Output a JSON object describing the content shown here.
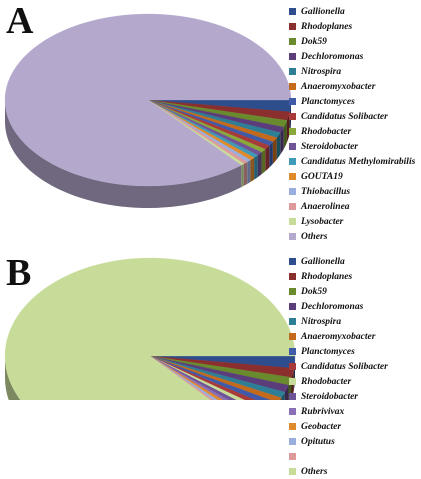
{
  "chart_data": [
    {
      "panel": "A",
      "type": "pie",
      "title": "",
      "colors": [
        "#2e4d8c",
        "#8b2e2e",
        "#6a8a2e",
        "#5a3d7a",
        "#2e7e96",
        "#c46a1d",
        "#3e5aa8",
        "#a83a3a",
        "#8aa83a",
        "#6e5496",
        "#3e9ab6",
        "#e08a2e",
        "#9aaede",
        "#de9a9a",
        "#c8dc9a",
        "#b4a8cc"
      ],
      "slices": [
        {
          "label": "Gallionella",
          "value": 2.2
        },
        {
          "label": "Rhodoplanes",
          "value": 1.6
        },
        {
          "label": "Dok59",
          "value": 1.3
        },
        {
          "label": "Dechloromonas",
          "value": 1.1
        },
        {
          "label": "Nitrospira",
          "value": 1.0
        },
        {
          "label": "Anaeromyxobacter",
          "value": 0.9
        },
        {
          "label": "Planctomyces",
          "value": 0.8
        },
        {
          "label": "Candidatus Solibacter",
          "value": 0.8
        },
        {
          "label": "Rhodobacter",
          "value": 0.7
        },
        {
          "label": "Steroidobacter",
          "value": 0.7
        },
        {
          "label": "Candidatus Methylomirabilis",
          "value": 0.6
        },
        {
          "label": "GOUTA19",
          "value": 0.6
        },
        {
          "label": "Thiobacillus",
          "value": 0.5
        },
        {
          "label": "Anaerolinea",
          "value": 0.5
        },
        {
          "label": "Lysobacter",
          "value": 0.4
        },
        {
          "label": "Others",
          "value": 86.3
        }
      ]
    },
    {
      "panel": "B",
      "type": "pie",
      "title": "",
      "colors": [
        "#2e4d8c",
        "#8b2e2e",
        "#6a8a2e",
        "#5a3d7a",
        "#2e7e96",
        "#c46a1d",
        "#3e5aa8",
        "#a83a3a",
        "#c8dc9a",
        "#6e5496",
        "#8a6eb6",
        "#e08a2e",
        "#9aaede",
        "#de9a9a",
        "#c8dc9a"
      ],
      "slices": [
        {
          "label": "Gallionella",
          "value": 2.0
        },
        {
          "label": "Rhodoplanes",
          "value": 1.5
        },
        {
          "label": "Dok59",
          "value": 1.3
        },
        {
          "label": "Dechloromonas",
          "value": 1.2
        },
        {
          "label": "Nitrospira",
          "value": 1.0
        },
        {
          "label": "Anaeromyxobacter",
          "value": 0.9
        },
        {
          "label": "Planctomyces",
          "value": 0.9
        },
        {
          "label": "Candidatus Solibacter",
          "value": 0.8
        },
        {
          "label": "Rhodobacter",
          "value": 0.7
        },
        {
          "label": "Steroidobacter",
          "value": 0.7
        },
        {
          "label": "Rubrivivax",
          "value": 0.6
        },
        {
          "label": "Geobacter",
          "value": 0.6
        },
        {
          "label": "Opitutus",
          "value": 0.5
        },
        {
          "label": "",
          "value": 0.4
        },
        {
          "label": "Others",
          "value": 86.9
        }
      ]
    }
  ],
  "panels": {
    "a": {
      "letter": "A"
    },
    "b": {
      "letter": "B"
    }
  }
}
